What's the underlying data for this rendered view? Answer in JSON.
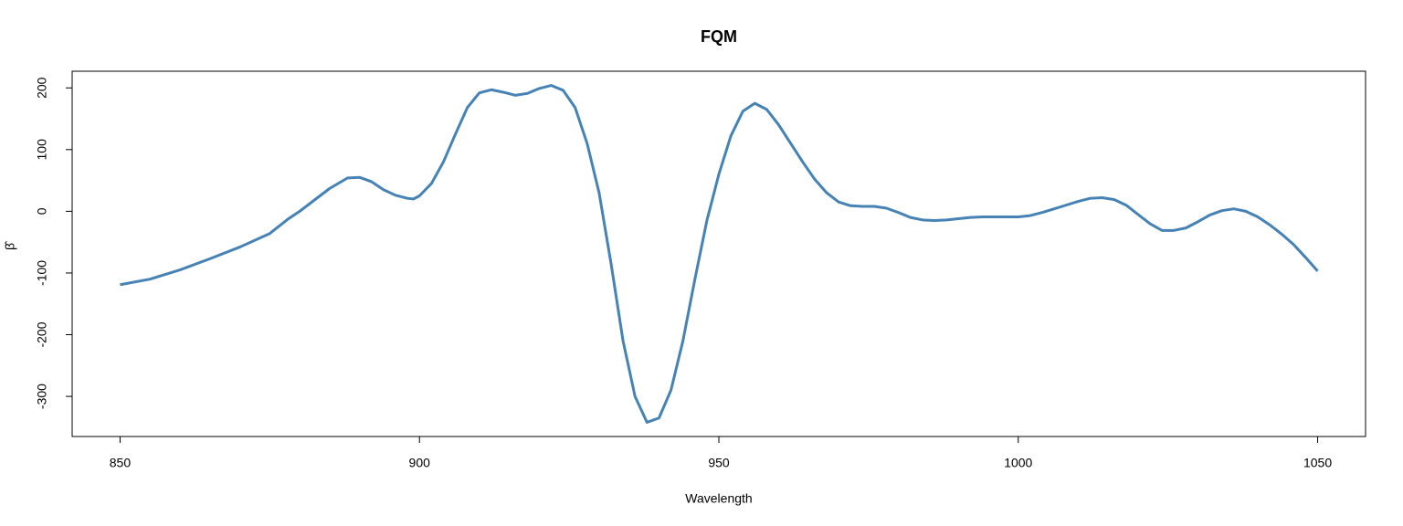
{
  "chart_data": {
    "type": "line",
    "title": "FQM",
    "xlabel": "Wavelength",
    "ylabel": "β̂",
    "x": [
      850,
      855,
      860,
      865,
      870,
      875,
      878,
      880,
      885,
      888,
      890,
      892,
      894,
      896,
      898,
      899,
      900,
      902,
      904,
      906,
      908,
      910,
      912,
      914,
      916,
      918,
      920,
      922,
      924,
      926,
      928,
      930,
      932,
      934,
      936,
      938,
      940,
      942,
      944,
      946,
      948,
      950,
      952,
      954,
      956,
      958,
      960,
      962,
      964,
      966,
      968,
      970,
      972,
      974,
      976,
      978,
      980,
      982,
      984,
      986,
      988,
      990,
      992,
      994,
      996,
      998,
      1000,
      1002,
      1004,
      1006,
      1008,
      1010,
      1012,
      1014,
      1016,
      1018,
      1020,
      1022,
      1024,
      1026,
      1028,
      1030,
      1032,
      1034,
      1036,
      1038,
      1040,
      1042,
      1044,
      1046,
      1048,
      1050
    ],
    "values": [
      -119,
      -110,
      -95,
      -77,
      -58,
      -36,
      -13,
      0,
      37,
      54,
      55,
      48,
      35,
      26,
      21,
      20,
      25,
      45,
      80,
      125,
      168,
      192,
      197,
      193,
      188,
      191,
      199,
      204,
      196,
      168,
      110,
      30,
      -85,
      -210,
      -300,
      -342,
      -335,
      -290,
      -210,
      -110,
      -15,
      60,
      122,
      162,
      175,
      165,
      140,
      110,
      80,
      52,
      30,
      15,
      9,
      8,
      8,
      5,
      -2,
      -10,
      -14,
      -15,
      -14,
      -12,
      -10,
      -9,
      -9,
      -9,
      -9,
      -7,
      -2,
      4,
      10,
      16,
      21,
      22,
      19,
      10,
      -5,
      -20,
      -31,
      -31,
      -27,
      -17,
      -6,
      1,
      4,
      0,
      -9,
      -22,
      -37,
      -54,
      -75,
      -97
    ],
    "color": "#4682b4",
    "xlim": [
      842,
      1058
    ],
    "ylim": [
      -365,
      227
    ],
    "xticks": [
      850,
      900,
      950,
      1000,
      1050
    ],
    "yticks": [
      -300,
      -200,
      -100,
      0,
      100,
      200
    ]
  }
}
